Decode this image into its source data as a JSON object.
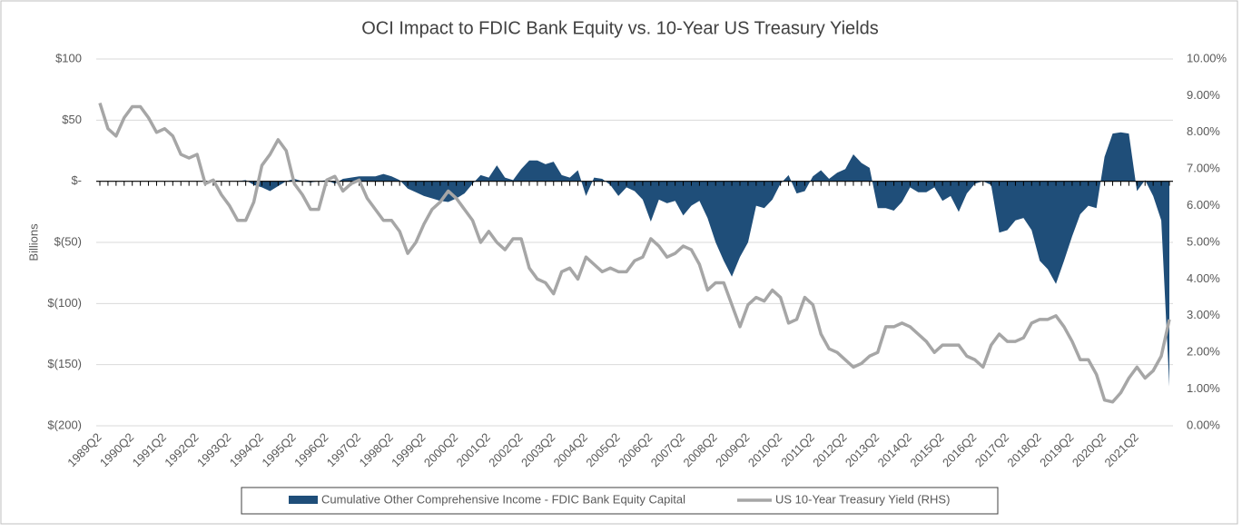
{
  "chart_data": {
    "type": "area-line",
    "title": "OCI Impact to FDIC Bank Equity vs. 10-Year US Treasury Yields",
    "y_label": "Billions",
    "categories": [
      "1989Q2",
      null,
      null,
      null,
      "1990Q2",
      null,
      null,
      null,
      "1991Q2",
      null,
      null,
      null,
      "1992Q2",
      null,
      null,
      null,
      "1993Q2",
      null,
      null,
      null,
      "1994Q2",
      null,
      null,
      null,
      "1995Q2",
      null,
      null,
      null,
      "1996Q2",
      null,
      null,
      null,
      "1997Q2",
      null,
      null,
      null,
      "1998Q2",
      null,
      null,
      null,
      "1999Q2",
      null,
      null,
      null,
      "2000Q2",
      null,
      null,
      null,
      "2001Q2",
      null,
      null,
      null,
      "2002Q2",
      null,
      null,
      null,
      "2003Q2",
      null,
      null,
      null,
      "2004Q2",
      null,
      null,
      null,
      "2005Q2",
      null,
      null,
      null,
      "2006Q2",
      null,
      null,
      null,
      "2007Q2",
      null,
      null,
      null,
      "2008Q2",
      null,
      null,
      null,
      "2009Q2",
      null,
      null,
      null,
      "2010Q2",
      null,
      null,
      null,
      "2011Q2",
      null,
      null,
      null,
      "2012Q2",
      null,
      null,
      null,
      "2013Q2",
      null,
      null,
      null,
      "2014Q2",
      null,
      null,
      null,
      "2015Q2",
      null,
      null,
      null,
      "2016Q2",
      null,
      null,
      null,
      "2017Q2",
      null,
      null,
      null,
      "2018Q2",
      null,
      null,
      null,
      "2019Q2",
      null,
      null,
      null,
      "2020Q2",
      null,
      null,
      null,
      "2021Q2",
      null,
      null,
      null,
      null
    ],
    "series": [
      {
        "name": "Cumulative Other Comprehensive Income - FDIC Bank Equity Capital",
        "color": "#1f4e79",
        "kind": "area",
        "values": [
          0,
          0,
          0,
          0,
          0,
          0,
          0,
          0,
          0,
          0,
          0,
          0,
          0,
          0,
          0,
          0,
          0,
          0,
          1,
          -3,
          -5,
          -8,
          -4,
          0,
          2,
          0,
          -1,
          0,
          1,
          -2,
          2,
          3,
          4,
          4,
          4,
          6,
          4,
          1,
          -6,
          -9,
          -12,
          -14,
          -16,
          -17,
          -14,
          -10,
          -2,
          5,
          3,
          13,
          3,
          1,
          10,
          17,
          17,
          14,
          16,
          5,
          3,
          9,
          -12,
          3,
          2,
          -3,
          -12,
          -5,
          -8,
          -15,
          -33,
          -15,
          -18,
          -16,
          -28,
          -20,
          -16,
          -30,
          -50,
          -65,
          -78,
          -62,
          -50,
          -20,
          -22,
          -15,
          -2,
          5,
          -10,
          -8,
          4,
          9,
          2,
          7,
          10,
          22,
          15,
          11,
          -22,
          -22,
          -24,
          -17,
          -5,
          -9,
          -9,
          -5,
          -16,
          -12,
          -25,
          -10,
          -2,
          0,
          -3,
          -42,
          -40,
          -32,
          -30,
          -40,
          -65,
          -72,
          -84,
          -65,
          -45,
          -27,
          -20,
          -22,
          20,
          39,
          40,
          39,
          -8,
          1,
          -12,
          -32,
          -168
        ]
      },
      {
        "name": "US 10-Year Treasury Yield (RHS)",
        "color": "#a6a6a6",
        "kind": "line",
        "axis": "y2",
        "values": [
          8.8,
          8.1,
          7.9,
          8.4,
          8.7,
          8.7,
          8.4,
          8.0,
          8.1,
          7.9,
          7.4,
          7.3,
          7.4,
          6.6,
          6.7,
          6.3,
          6.0,
          5.6,
          5.6,
          6.1,
          7.1,
          7.4,
          7.8,
          7.5,
          6.6,
          6.3,
          5.9,
          5.9,
          6.7,
          6.8,
          6.4,
          6.6,
          6.7,
          6.2,
          5.9,
          5.6,
          5.6,
          5.3,
          4.7,
          5.0,
          5.5,
          5.9,
          6.1,
          6.4,
          6.2,
          5.9,
          5.6,
          5.0,
          5.3,
          5.0,
          4.8,
          5.1,
          5.1,
          4.3,
          4.0,
          3.9,
          3.6,
          4.2,
          4.3,
          4.0,
          4.6,
          4.4,
          4.2,
          4.3,
          4.2,
          4.2,
          4.5,
          4.6,
          5.1,
          4.9,
          4.6,
          4.7,
          4.9,
          4.8,
          4.4,
          3.7,
          3.9,
          3.9,
          3.3,
          2.7,
          3.3,
          3.5,
          3.4,
          3.7,
          3.5,
          2.8,
          2.9,
          3.5,
          3.3,
          2.5,
          2.1,
          2.0,
          1.8,
          1.6,
          1.7,
          1.9,
          2.0,
          2.7,
          2.7,
          2.8,
          2.7,
          2.5,
          2.3,
          2.0,
          2.2,
          2.2,
          2.2,
          1.9,
          1.8,
          1.6,
          2.2,
          2.5,
          2.3,
          2.3,
          2.4,
          2.8,
          2.9,
          2.9,
          3.0,
          2.7,
          2.3,
          1.8,
          1.8,
          1.4,
          0.7,
          0.65,
          0.9,
          1.3,
          1.6,
          1.3,
          1.5,
          1.9,
          2.9
        ]
      }
    ],
    "ylim": [
      -200,
      100
    ],
    "yticks": [
      {
        "value": 100,
        "label": "$100"
      },
      {
        "value": 50,
        "label": "$50"
      },
      {
        "value": 0,
        "label": "$-"
      },
      {
        "value": -50,
        "label": "$(50)"
      },
      {
        "value": -100,
        "label": "$(100)"
      },
      {
        "value": -150,
        "label": "$(150)"
      },
      {
        "value": -200,
        "label": "$(200)"
      }
    ],
    "y2lim": [
      0,
      10
    ],
    "y2ticks": [
      {
        "value": 10,
        "label": "10.00%"
      },
      {
        "value": 9,
        "label": "9.00%"
      },
      {
        "value": 8,
        "label": "8.00%"
      },
      {
        "value": 7,
        "label": "7.00%"
      },
      {
        "value": 6,
        "label": "6.00%"
      },
      {
        "value": 5,
        "label": "5.00%"
      },
      {
        "value": 4,
        "label": "4.00%"
      },
      {
        "value": 3,
        "label": "3.00%"
      },
      {
        "value": 2,
        "label": "2.00%"
      },
      {
        "value": 1,
        "label": "1.00%"
      },
      {
        "value": 0,
        "label": "0.00%"
      }
    ],
    "grid": true,
    "legend": "bottom"
  }
}
